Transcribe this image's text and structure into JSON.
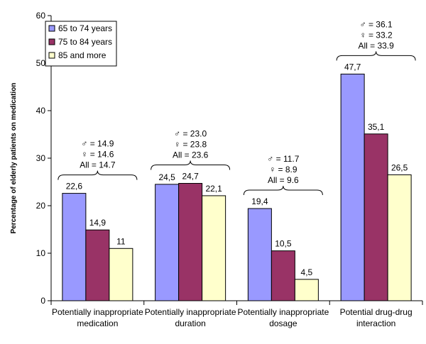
{
  "chart_data": {
    "type": "bar",
    "ylabel": "Percentage of elderly patients on medication",
    "ylim": [
      0,
      60
    ],
    "yticks": [
      "0",
      "10",
      "20",
      "30",
      "40",
      "50",
      "60"
    ],
    "ytick_values": [
      0,
      10,
      20,
      30,
      40,
      50,
      60
    ],
    "grid": false,
    "legend_position": "top-left",
    "categories": [
      [
        "Potentially inappropriate",
        "medication"
      ],
      [
        "Potentially inappropriate",
        "duration"
      ],
      [
        "Potentially inappropriate",
        "dosage"
      ],
      [
        "Potential drug-drug",
        "interaction"
      ]
    ],
    "series": [
      {
        "name": "65 to 74 years",
        "color": "#9999ff",
        "values": [
          22.6,
          24.5,
          19.4,
          47.7
        ],
        "labels": [
          "22,6",
          "24,5",
          "19,4",
          "47,7"
        ]
      },
      {
        "name": "75 to 84 years",
        "color": "#993366",
        "values": [
          14.9,
          24.7,
          10.5,
          35.1
        ],
        "labels": [
          "14,9",
          "24,7",
          "10,5",
          "35,1"
        ]
      },
      {
        "name": "85 and more",
        "color": "#ffffcc",
        "values": [
          11,
          22.1,
          4.5,
          26.5
        ],
        "labels": [
          "11",
          "22,1",
          "4,5",
          "26,5"
        ]
      }
    ],
    "annotations": [
      [
        "♂ = 14.9",
        "♀ = 14.6",
        "All = 14.7"
      ],
      [
        "♂ = 23.0",
        "♀ = 23.8",
        "All = 23.6"
      ],
      [
        "♂ = 11.7",
        "♀ = 8.9",
        "All = 9.6"
      ],
      [
        "♂ = 36.1",
        "♀ = 33.2",
        "All = 33.9"
      ]
    ]
  }
}
